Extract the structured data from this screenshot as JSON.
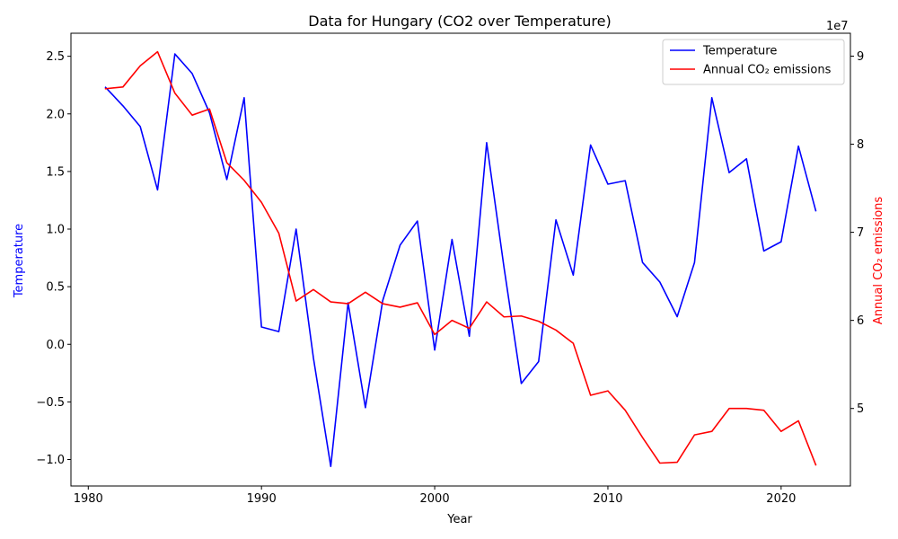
{
  "chart_data": {
    "type": "line",
    "title": "Data for Hungary (CO2 over Temperature)",
    "xlabel": "Year",
    "ylabel": "Temperature",
    "y2label": "Annual CO₂ emissions",
    "y2_offset_label": "1e7",
    "xlim": [
      1979,
      2024
    ],
    "ylim": [
      -1.23,
      2.7
    ],
    "y2lim": [
      41200000,
      92600000
    ],
    "x_ticks": [
      1980,
      1990,
      2000,
      2010,
      2020
    ],
    "y_ticks": [
      -1.0,
      -0.5,
      0.0,
      0.5,
      1.0,
      1.5,
      2.0,
      2.5
    ],
    "y_tick_labels": [
      "−1.0",
      "−0.5",
      "0.0",
      "0.5",
      "1.0",
      "1.5",
      "2.0",
      "2.5"
    ],
    "y2_ticks": [
      50000000,
      60000000,
      70000000,
      80000000,
      90000000
    ],
    "y2_tick_labels": [
      "5",
      "6",
      "7",
      "8",
      "9"
    ],
    "legend_position": "top-right",
    "grid": false,
    "x": [
      1981,
      1982,
      1983,
      1984,
      1985,
      1986,
      1987,
      1988,
      1989,
      1990,
      1991,
      1992,
      1993,
      1994,
      1995,
      1996,
      1997,
      1998,
      1999,
      2000,
      2001,
      2002,
      2003,
      2004,
      2005,
      2006,
      2007,
      2008,
      2009,
      2010,
      2011,
      2012,
      2013,
      2014,
      2015,
      2016,
      2017,
      2018,
      2019,
      2020,
      2021,
      2022
    ],
    "series": [
      {
        "name": "Temperature",
        "axis": "left",
        "color": "#0000ff",
        "values": [
          2.23,
          2.07,
          1.89,
          1.34,
          2.52,
          2.35,
          2.01,
          1.43,
          2.14,
          0.15,
          0.11,
          1.0,
          -0.12,
          -1.06,
          0.36,
          -0.55,
          0.38,
          0.86,
          1.07,
          -0.05,
          0.91,
          0.07,
          1.75,
          0.67,
          -0.34,
          -0.15,
          1.08,
          0.6,
          1.73,
          1.39,
          1.42,
          0.71,
          0.54,
          0.24,
          0.71,
          2.14,
          1.49,
          1.61,
          0.81,
          0.89,
          1.72,
          1.16
        ]
      },
      {
        "name": "Annual CO₂ emissions",
        "axis": "right",
        "color": "#ff0000",
        "values": [
          86300000,
          86500000,
          88900000,
          90500000,
          85800000,
          83300000,
          84000000,
          77900000,
          75900000,
          73400000,
          69900000,
          62200000,
          63500000,
          62100000,
          61900000,
          63200000,
          61900000,
          61500000,
          62000000,
          58400000,
          60000000,
          59100000,
          62100000,
          60400000,
          60500000,
          59900000,
          58900000,
          57400000,
          51500000,
          52000000,
          49800000,
          46700000,
          43800000,
          43900000,
          47000000,
          47400000,
          50000000,
          50000000,
          49800000,
          47400000,
          48600000,
          43600000
        ]
      }
    ]
  }
}
